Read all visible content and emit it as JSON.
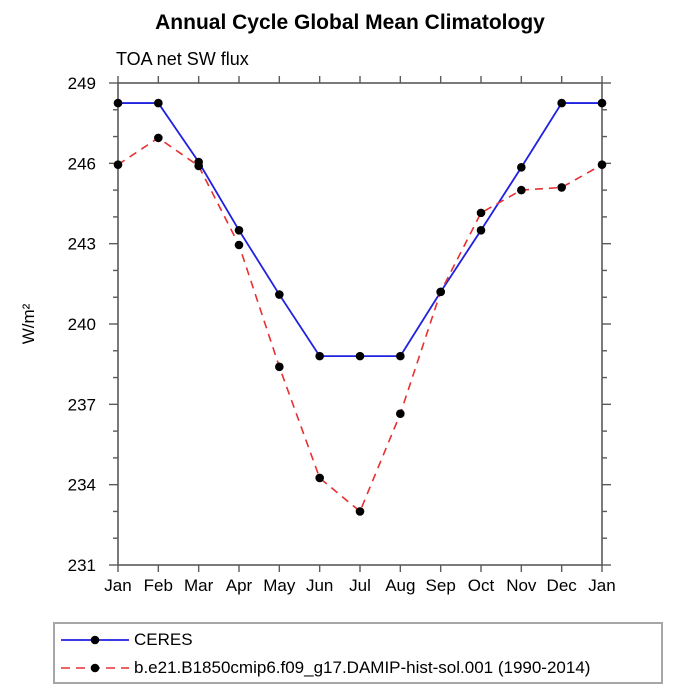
{
  "title": "Annual Cycle Global Mean Climatology",
  "subtitle": "TOA net SW flux",
  "chart_data": {
    "type": "line",
    "x_categories": [
      "Jan",
      "Feb",
      "Mar",
      "Apr",
      "May",
      "Jun",
      "Jul",
      "Aug",
      "Sep",
      "Oct",
      "Nov",
      "Dec",
      "Jan"
    ],
    "ylabel": "W/m²",
    "ylim": [
      231,
      249
    ],
    "ytick_major": [
      231,
      234,
      237,
      240,
      243,
      246,
      249
    ],
    "ytick_minor_step": 1,
    "grid": false,
    "legend_position": "bottom-left",
    "axis_color": "#5a5a5a",
    "marker_color": "#000000",
    "series": [
      {
        "name": "CERES",
        "color": "#2020e0",
        "style": "solid",
        "marker": "circle",
        "values": [
          248.25,
          248.25,
          246.05,
          243.5,
          241.1,
          238.8,
          238.8,
          238.8,
          241.2,
          243.5,
          245.85,
          248.25,
          248.25
        ]
      },
      {
        "name": "b.e21.B1850cmip6.f09_g17.DAMIP-hist-sol.001 (1990-2014)",
        "color": "#e83030",
        "style": "dashed",
        "marker": "circle",
        "values": [
          245.95,
          246.95,
          245.9,
          242.95,
          238.4,
          234.25,
          233.0,
          236.65,
          241.2,
          244.15,
          245.0,
          245.1,
          245.95
        ]
      }
    ]
  }
}
